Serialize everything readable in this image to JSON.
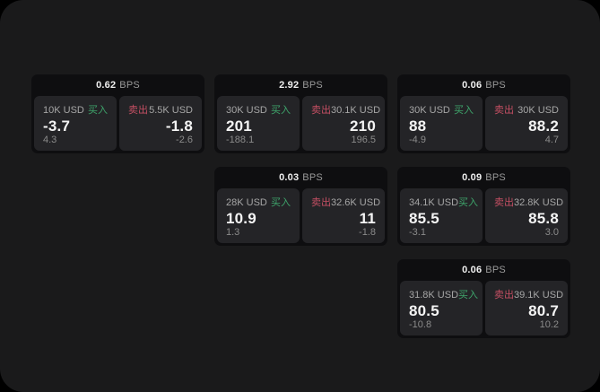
{
  "labels": {
    "bps_unit": "BPS",
    "buy": "买入",
    "sell": "卖出"
  },
  "colors": {
    "buy_accent": "#3ea46b",
    "sell_accent": "#c44f63",
    "panel_bg": "#1a1a1b",
    "card_bg": "#0e0e10",
    "pane_bg": "#242427"
  },
  "cards": [
    {
      "bps": "0.62",
      "buy": {
        "size": "10K USD",
        "main": "-3.7",
        "sub": "4.3"
      },
      "sell": {
        "size": "5.5K USD",
        "main": "-1.8",
        "sub": "-2.6"
      }
    },
    {
      "bps": "2.92",
      "buy": {
        "size": "30K USD",
        "main": "201",
        "sub": "-188.1"
      },
      "sell": {
        "size": "30.1K USD",
        "main": "210",
        "sub": "196.5"
      }
    },
    {
      "bps": "0.06",
      "buy": {
        "size": "30K USD",
        "main": "88",
        "sub": "-4.9"
      },
      "sell": {
        "size": "30K USD",
        "main": "88.2",
        "sub": "4.7"
      }
    },
    {
      "bps": "0.03",
      "buy": {
        "size": "28K USD",
        "main": "10.9",
        "sub": "1.3"
      },
      "sell": {
        "size": "32.6K USD",
        "main": "11",
        "sub": "-1.8"
      }
    },
    {
      "bps": "0.09",
      "buy": {
        "size": "34.1K USD",
        "main": "85.5",
        "sub": "-3.1"
      },
      "sell": {
        "size": "32.8K USD",
        "main": "85.8",
        "sub": "3.0"
      }
    },
    {
      "bps": "0.06",
      "buy": {
        "size": "31.8K USD",
        "main": "80.5",
        "sub": "-10.8"
      },
      "sell": {
        "size": "39.1K USD",
        "main": "80.7",
        "sub": "10.2"
      }
    }
  ]
}
